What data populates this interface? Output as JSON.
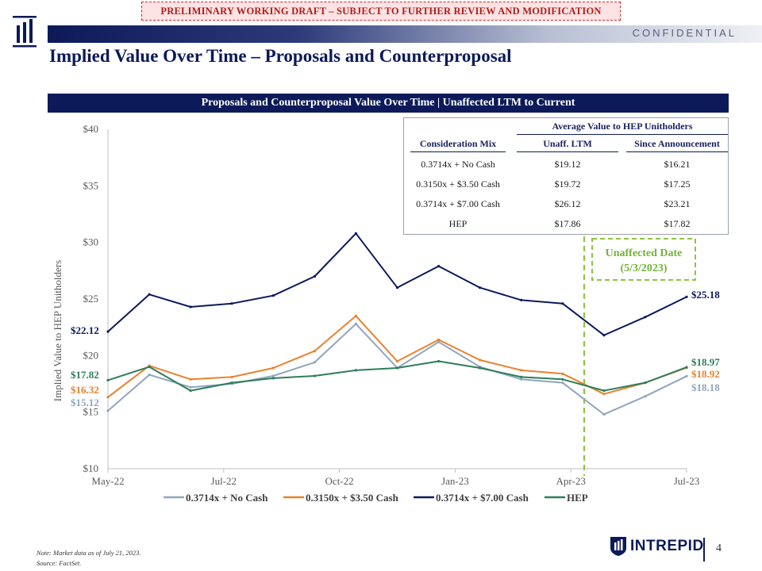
{
  "banner": "PRELIMINARY WORKING DRAFT – SUBJECT TO FURTHER REVIEW AND MODIFICATION",
  "confidential": "CONFIDENTIAL",
  "title": "Implied Value Over Time – Proposals and Counterproposal",
  "chart_header": "Proposals and Counterproposal Value Over Time | Unaffected LTM to Current",
  "table": {
    "group_header": "Average Value to HEP Unitholders",
    "col_mix": "Consideration Mix",
    "col_ltm": "Unaff. LTM",
    "col_since": "Since Announcement",
    "rows": [
      {
        "mix": "0.3714x + No Cash",
        "ltm": "$19.12",
        "since": "$16.21"
      },
      {
        "mix": "0.3150x + $3.50 Cash",
        "ltm": "$19.72",
        "since": "$17.25"
      },
      {
        "mix": "0.3714x + $7.00 Cash",
        "ltm": "$26.12",
        "since": "$23.21"
      },
      {
        "mix": "HEP",
        "ltm": "$17.86",
        "since": "$17.82"
      }
    ]
  },
  "chart_data": {
    "type": "line",
    "ylabel": "Implied Value to HEP Unitholders",
    "ylim": [
      10,
      40
    ],
    "yticks": [
      "$10",
      "$15",
      "$20",
      "$25",
      "$30",
      "$35",
      "$40"
    ],
    "xticks": [
      "May-22",
      "Jul-22",
      "Oct-22",
      "Jan-23",
      "Apr-23",
      "Jul-23"
    ],
    "x": [
      "May-22",
      "Jun-22",
      "Jul-22",
      "Aug-22",
      "Sep-22",
      "Oct-22",
      "Nov-22",
      "Dec-22",
      "Jan-23",
      "Feb-23",
      "Mar-23",
      "Apr-23",
      "May-23",
      "Jun-23",
      "Jul-23"
    ],
    "series": [
      {
        "name": "0.3714x + No Cash",
        "color": "#8fa5bf",
        "start_label": "$15.12",
        "end_label": "$18.18",
        "values": [
          15.12,
          18.3,
          17.2,
          17.5,
          18.2,
          19.4,
          22.8,
          18.9,
          21.2,
          19.0,
          17.9,
          17.6,
          14.8,
          16.4,
          18.18
        ]
      },
      {
        "name": "0.3150x + $3.50 Cash",
        "color": "#e8822e",
        "start_label": "$16.32",
        "end_label": "$18.92",
        "values": [
          16.32,
          19.1,
          17.9,
          18.1,
          18.9,
          20.4,
          23.5,
          19.5,
          21.4,
          19.6,
          18.7,
          18.4,
          16.6,
          17.6,
          18.92
        ]
      },
      {
        "name": "0.3714x + $7.00 Cash",
        "color": "#0c1a5a",
        "start_label": "$22.12",
        "end_label": "$25.18",
        "values": [
          22.12,
          25.4,
          24.3,
          24.6,
          25.3,
          27.0,
          30.8,
          26.0,
          27.9,
          26.0,
          24.9,
          24.6,
          21.8,
          23.4,
          25.18
        ]
      },
      {
        "name": "HEP",
        "color": "#2e7d5b",
        "start_label": "$17.82",
        "end_label": "$18.97",
        "values": [
          17.82,
          19.0,
          16.9,
          17.6,
          18.0,
          18.2,
          18.7,
          18.9,
          19.5,
          18.9,
          18.1,
          17.9,
          16.9,
          17.6,
          18.97
        ]
      }
    ],
    "annotation": {
      "label": "Unaffected Date\n(5/3/2023)",
      "x": "5/3/2023"
    },
    "grid": false,
    "legend": "bottom"
  },
  "footnote_note": "Note: Market data as of July 21, 2023.",
  "footnote_source": "Source: FactSet.",
  "logo_text": "INTREPID",
  "page_number": "4"
}
